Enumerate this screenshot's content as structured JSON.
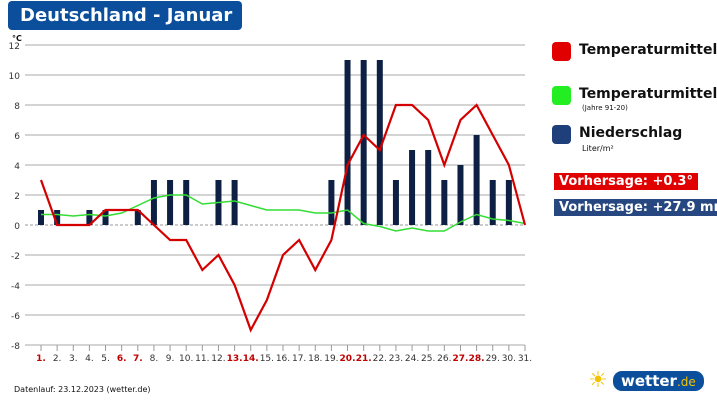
{
  "header": {
    "title": "Deutschland - Januar"
  },
  "legend": {
    "items": [
      {
        "label": "Temperaturmittel",
        "sub": "",
        "color": "#e00000"
      },
      {
        "label": "Temperaturmittel",
        "sub": "(Jahre 91-20)",
        "color": "#22ee22"
      },
      {
        "label": "Niederschlag",
        "sub": "Liter/m²",
        "color": "#1e3f7a"
      }
    ],
    "forecast_temp": "Vorhersage: +0.3°",
    "forecast_precip": "Vorhersage: +27.9 mm",
    "forecast_temp_color": "#e00000",
    "forecast_precip_color": "#26477f"
  },
  "footer": {
    "source": "Datenlauf: 23.12.2023 (wetter.de)",
    "logo_main": "wetter",
    "logo_tld": ".de"
  },
  "chart_data": {
    "type": "bar+line",
    "ylabel": "°C",
    "ylim": [
      -8,
      12
    ],
    "yticks": [
      12,
      10,
      8,
      6,
      4,
      2,
      0,
      -2,
      -4,
      -6,
      -8
    ],
    "grid": true,
    "categories": [
      "1.",
      "2.",
      "3.",
      "4.",
      "5.",
      "6.",
      "7.",
      "8.",
      "9.",
      "10.",
      "11.",
      "12.",
      "13.",
      "14.",
      "15.",
      "16.",
      "17.",
      "18.",
      "19.",
      "20.",
      "21.",
      "22.",
      "23.",
      "24.",
      "25.",
      "26.",
      "27.",
      "28.",
      "29.",
      "30.",
      "31."
    ],
    "highlighted_days": [
      1,
      6,
      7,
      13,
      14,
      20,
      21,
      27,
      28
    ],
    "series": [
      {
        "name": "Temperaturmittel",
        "type": "line",
        "color": "#d40000",
        "values": [
          3,
          0,
          0,
          0,
          1,
          1,
          1,
          0,
          -1,
          -1,
          -3,
          -2,
          -4,
          -7,
          -5,
          -2,
          -1,
          -3,
          -1,
          4,
          6,
          5,
          8,
          8,
          7,
          4,
          7,
          8,
          6,
          4,
          0
        ]
      },
      {
        "name": "Temperaturmittel (Jahre 91-20)",
        "type": "line",
        "color": "#33dd33",
        "values": [
          0.7,
          0.7,
          0.6,
          0.7,
          0.6,
          0.8,
          1.3,
          1.8,
          2.0,
          2.0,
          1.4,
          1.5,
          1.6,
          1.3,
          1.0,
          1.0,
          1.0,
          0.8,
          0.8,
          1.0,
          0.1,
          -0.1,
          -0.4,
          -0.2,
          -0.4,
          -0.4,
          0.2,
          0.7,
          0.4,
          0.3,
          0.1
        ]
      },
      {
        "name": "Niederschlag",
        "type": "bar",
        "color": "#0d1f42",
        "values": [
          1,
          1,
          0,
          1,
          1,
          0,
          1,
          3,
          3,
          3,
          0,
          3,
          3,
          0,
          0,
          0,
          0,
          0,
          3,
          11,
          11,
          11,
          3,
          5,
          5,
          3,
          4,
          6,
          3,
          3,
          0
        ]
      }
    ]
  }
}
